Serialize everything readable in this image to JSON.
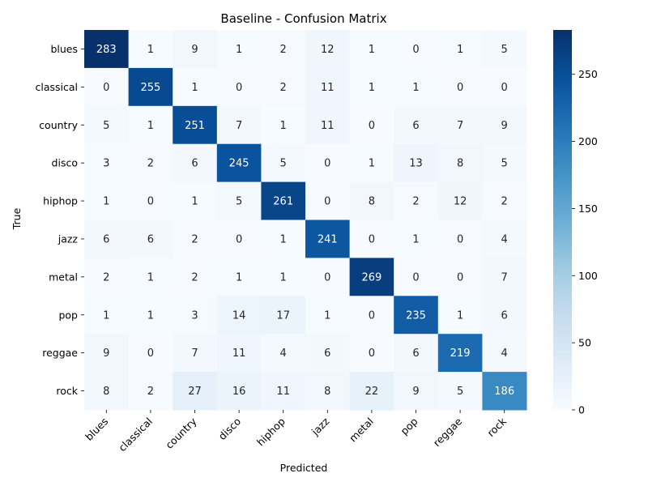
{
  "chart_data": {
    "type": "heatmap",
    "title": "Baseline - Confusion Matrix",
    "xlabel": "Predicted",
    "ylabel": "True",
    "x_categories": [
      "blues",
      "classical",
      "country",
      "disco",
      "hiphop",
      "jazz",
      "metal",
      "pop",
      "reggae",
      "rock"
    ],
    "y_categories": [
      "blues",
      "classical",
      "country",
      "disco",
      "hiphop",
      "jazz",
      "metal",
      "pop",
      "reggae",
      "rock"
    ],
    "values": [
      [
        283,
        1,
        9,
        1,
        2,
        12,
        1,
        0,
        1,
        5
      ],
      [
        0,
        255,
        1,
        0,
        2,
        11,
        1,
        1,
        0,
        0
      ],
      [
        5,
        1,
        251,
        7,
        1,
        11,
        0,
        6,
        7,
        9
      ],
      [
        3,
        2,
        6,
        245,
        5,
        0,
        1,
        13,
        8,
        5
      ],
      [
        1,
        0,
        1,
        5,
        261,
        0,
        8,
        2,
        12,
        2
      ],
      [
        6,
        6,
        2,
        0,
        1,
        241,
        0,
        1,
        0,
        4
      ],
      [
        2,
        1,
        2,
        1,
        1,
        0,
        269,
        0,
        0,
        7
      ],
      [
        1,
        1,
        3,
        14,
        17,
        1,
        0,
        235,
        1,
        6
      ],
      [
        9,
        0,
        7,
        11,
        4,
        6,
        0,
        6,
        219,
        4
      ],
      [
        8,
        2,
        27,
        16,
        11,
        8,
        22,
        9,
        5,
        186
      ]
    ],
    "colorbar": {
      "min": 0,
      "max": 283,
      "ticks": [
        0,
        50,
        100,
        150,
        200,
        250
      ],
      "colormap": "Blues"
    },
    "grid": false,
    "legend": "colorbar-right"
  }
}
